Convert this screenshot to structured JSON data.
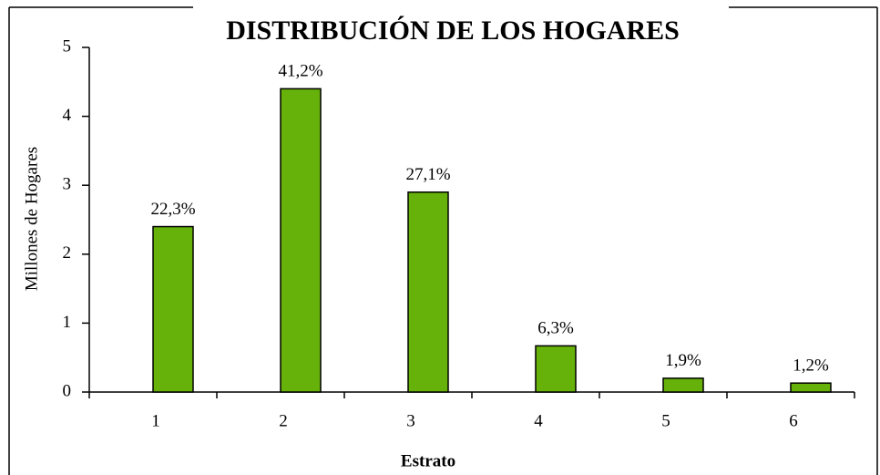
{
  "chart_data": {
    "type": "bar",
    "title": "DISTRIBUCIÓN DE LOS HOGARES",
    "x_label": "Estrato",
    "y_label": "Millones de Hogares",
    "categories": [
      "1",
      "2",
      "3",
      "4",
      "5",
      "6"
    ],
    "values": [
      2.4,
      4.4,
      2.9,
      0.67,
      0.2,
      0.13
    ],
    "annotations": [
      "22,3%",
      "41,2%",
      "27,1%",
      "6,3%",
      "1,9%",
      "1,2%"
    ],
    "color": "#66b20a",
    "ylim": [
      0,
      5
    ],
    "yticks": [
      0,
      1,
      2,
      3,
      4,
      5
    ],
    "grid": false
  }
}
